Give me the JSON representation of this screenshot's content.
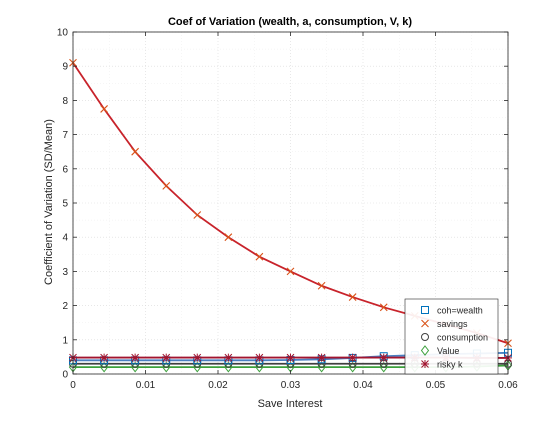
{
  "chart_data": {
    "type": "line",
    "title": "Coef of Variation (wealth, a, consumption, V, k)",
    "xlabel": "Save Interest",
    "ylabel": "Coefficient of Variation (SD/Mean)",
    "xlim": [
      0,
      0.06
    ],
    "ylim": [
      0,
      10
    ],
    "x_ticks": [
      "0",
      "0.01",
      "0.02",
      "0.03",
      "0.04",
      "0.05",
      "0.06"
    ],
    "y_ticks": [
      "0",
      "1",
      "2",
      "3",
      "4",
      "5",
      "6",
      "7",
      "8",
      "9",
      "10"
    ],
    "grid": true,
    "legend_position": "bottom-right",
    "x": [
      0,
      0.00429,
      0.00857,
      0.01286,
      0.01714,
      0.02143,
      0.02571,
      0.03,
      0.03429,
      0.03857,
      0.04286,
      0.04714,
      0.05143,
      0.05571,
      0.06
    ],
    "series": [
      {
        "name": "coh=wealth",
        "marker": "square",
        "color": "#0072BD",
        "line_color": "#4A7FC1",
        "values": [
          0.4,
          0.4,
          0.4,
          0.4,
          0.4,
          0.4,
          0.4,
          0.41,
          0.43,
          0.47,
          0.52,
          0.55,
          0.58,
          0.6,
          0.62
        ]
      },
      {
        "name": "savings",
        "marker": "x",
        "color": "#D95319",
        "line_color": "#C8232B",
        "values": [
          9.1,
          7.75,
          6.5,
          5.5,
          4.65,
          4.0,
          3.43,
          3.0,
          2.58,
          2.25,
          1.95,
          1.7,
          1.45,
          1.2,
          0.9
        ]
      },
      {
        "name": "consumption",
        "marker": "circle",
        "color": "#404040",
        "line_color": "#404040",
        "values": [
          0.3,
          0.3,
          0.3,
          0.3,
          0.3,
          0.3,
          0.3,
          0.3,
          0.3,
          0.3,
          0.3,
          0.3,
          0.3,
          0.3,
          0.3
        ]
      },
      {
        "name": "Value",
        "marker": "diamond",
        "color": "#3CA03C",
        "line_color": "#3CA03C",
        "values": [
          0.2,
          0.2,
          0.2,
          0.2,
          0.2,
          0.2,
          0.2,
          0.2,
          0.2,
          0.2,
          0.2,
          0.2,
          0.2,
          0.22,
          0.25
        ]
      },
      {
        "name": "risky k",
        "marker": "star",
        "color": "#A2142F",
        "line_color": "#A2142F",
        "values": [
          0.48,
          0.48,
          0.48,
          0.48,
          0.48,
          0.48,
          0.48,
          0.48,
          0.48,
          0.48,
          0.48,
          0.48,
          0.48,
          0.47,
          0.47
        ]
      }
    ]
  }
}
